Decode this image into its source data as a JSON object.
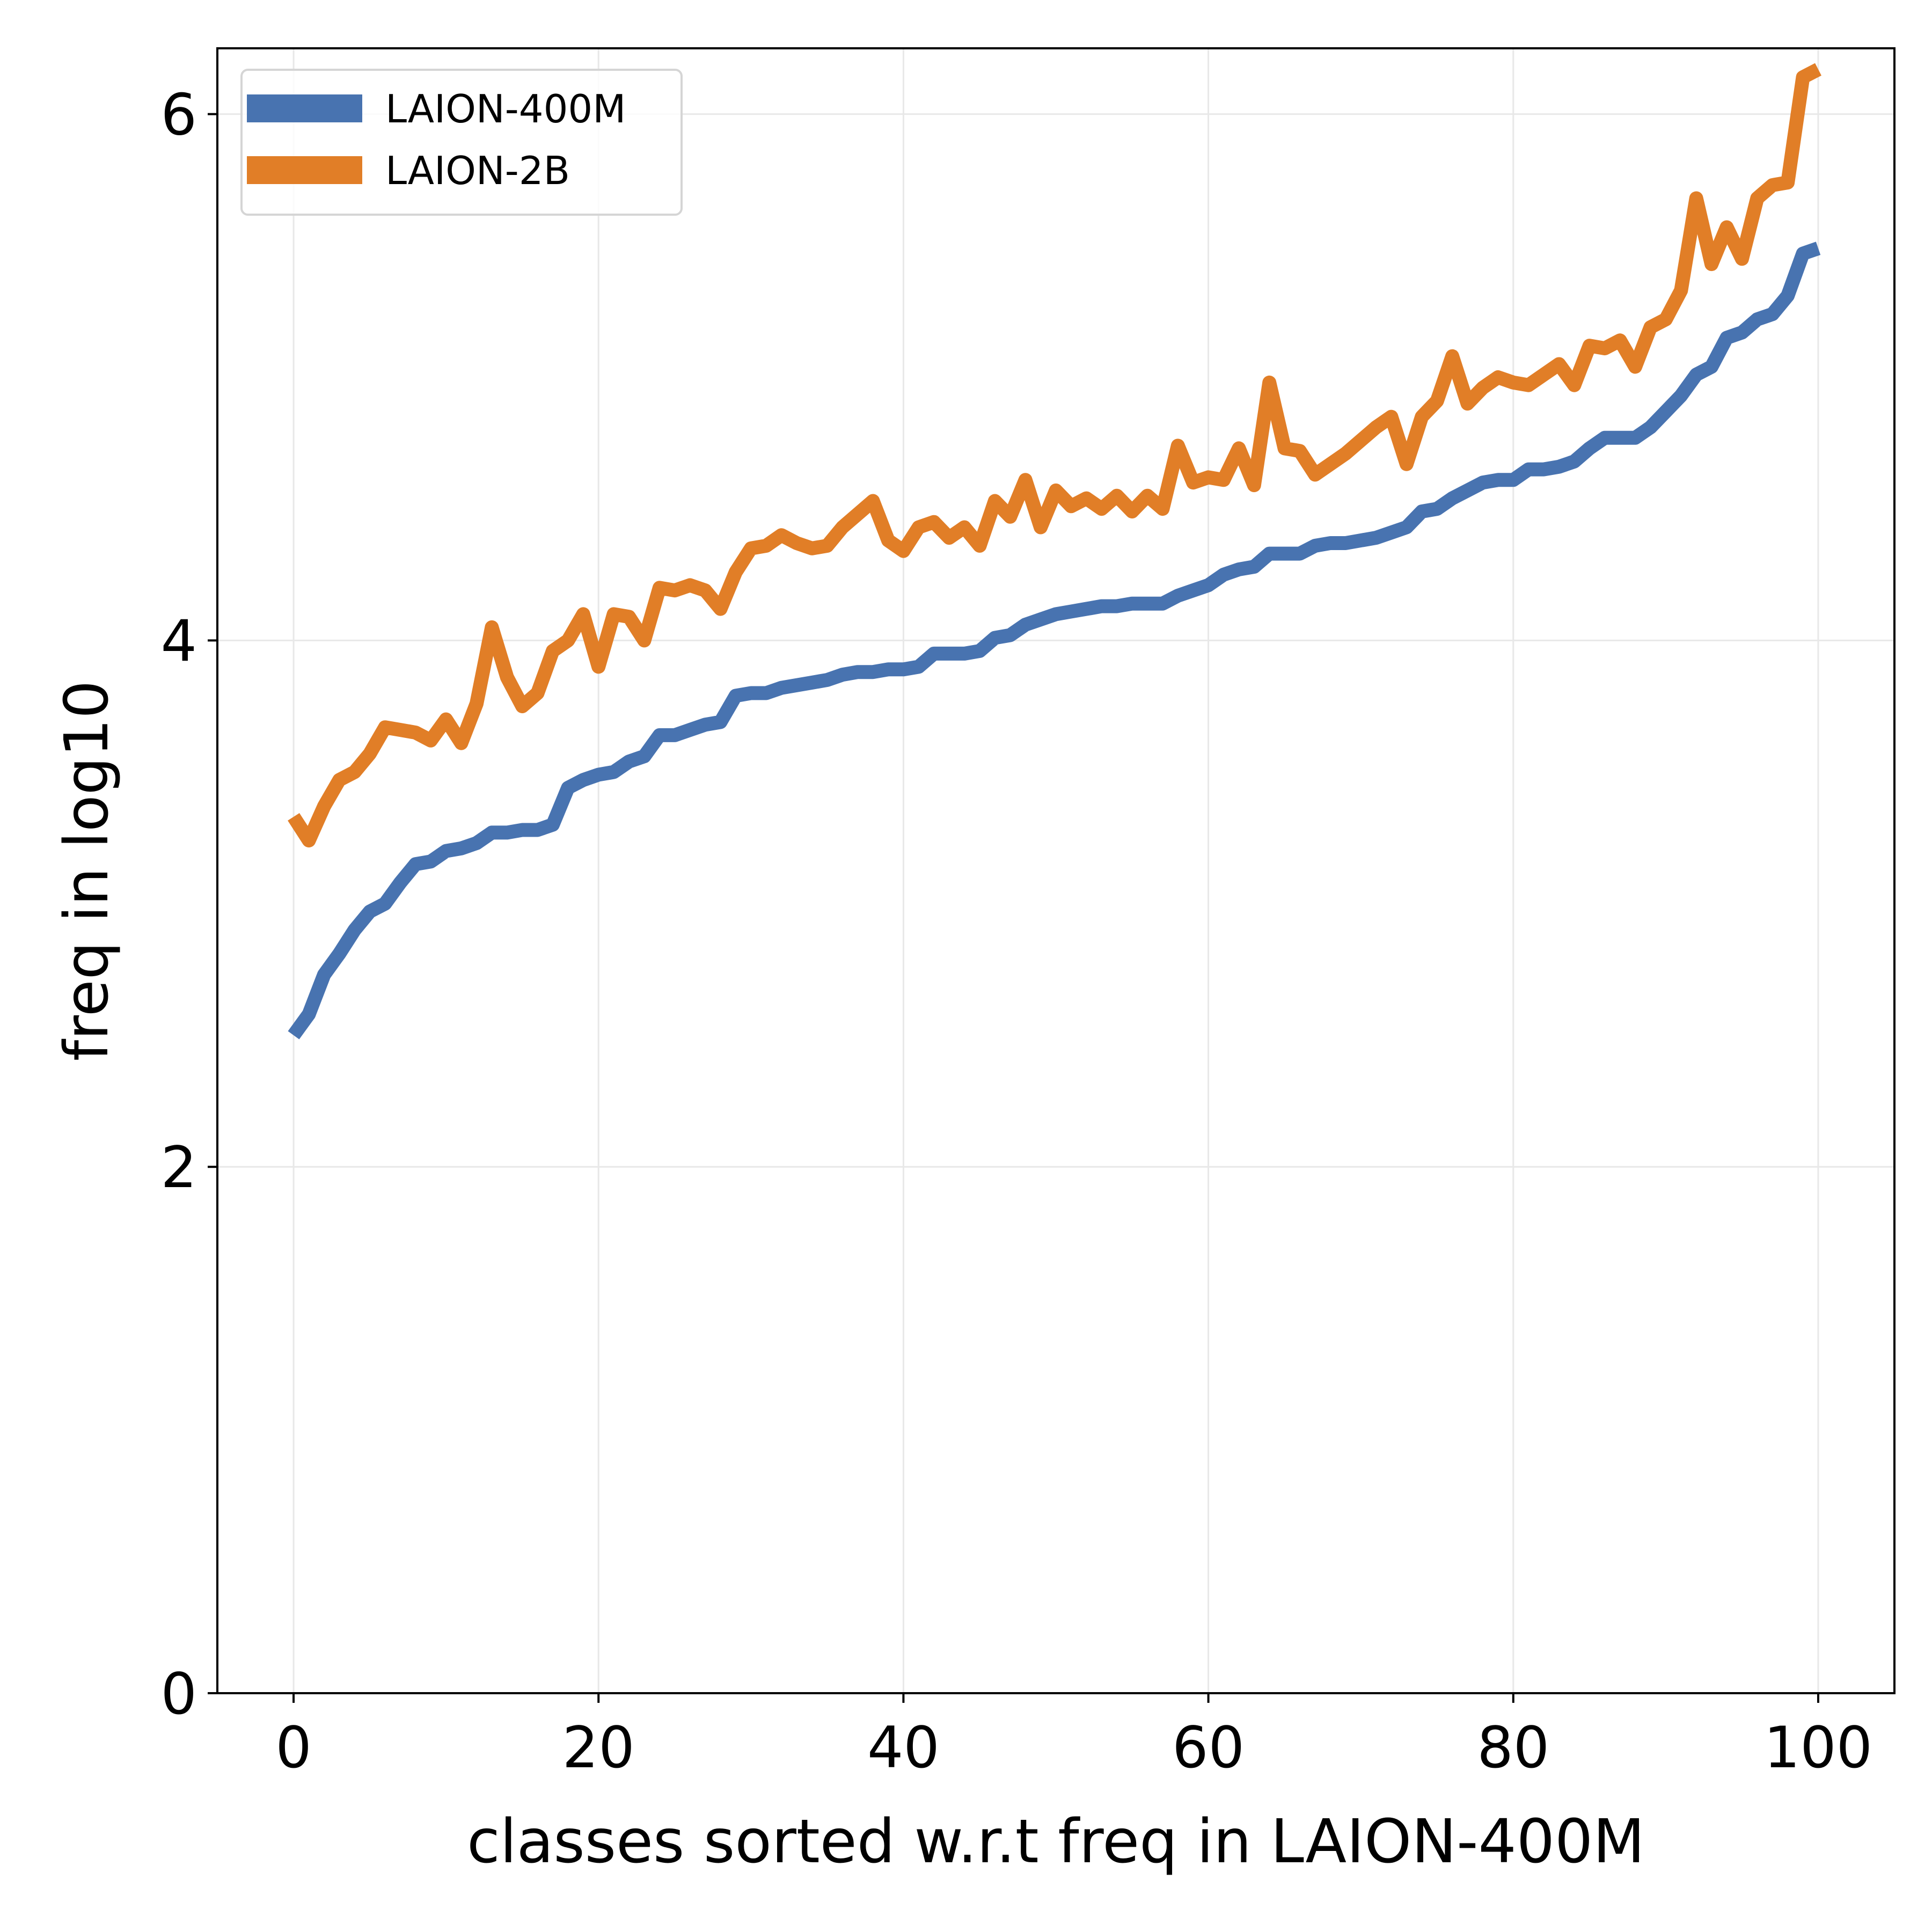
{
  "chart_data": {
    "type": "line",
    "xlabel": "classes sorted w.r.t freq in LAION-400M",
    "ylabel": "freq in log10",
    "xlim": [
      -5,
      105
    ],
    "ylim": [
      0,
      6.25
    ],
    "xticks": [
      0,
      20,
      40,
      60,
      80,
      100
    ],
    "yticks": [
      0,
      2,
      4,
      6
    ],
    "grid": true,
    "legend_position": "top-left",
    "series": [
      {
        "name": "LAION-400M",
        "color": "#4873b0",
        "values": [
          2.5,
          2.58,
          2.73,
          2.81,
          2.9,
          2.97,
          3.0,
          3.08,
          3.15,
          3.16,
          3.2,
          3.21,
          3.23,
          3.27,
          3.27,
          3.28,
          3.28,
          3.3,
          3.44,
          3.47,
          3.49,
          3.5,
          3.54,
          3.56,
          3.64,
          3.64,
          3.66,
          3.68,
          3.69,
          3.79,
          3.8,
          3.8,
          3.82,
          3.83,
          3.84,
          3.85,
          3.87,
          3.88,
          3.88,
          3.89,
          3.89,
          3.9,
          3.95,
          3.95,
          3.95,
          3.96,
          4.01,
          4.02,
          4.06,
          4.08,
          4.1,
          4.11,
          4.12,
          4.13,
          4.13,
          4.14,
          4.14,
          4.14,
          4.17,
          4.19,
          4.21,
          4.25,
          4.27,
          4.28,
          4.33,
          4.33,
          4.33,
          4.36,
          4.37,
          4.37,
          4.38,
          4.39,
          4.41,
          4.43,
          4.49,
          4.5,
          4.54,
          4.57,
          4.6,
          4.61,
          4.61,
          4.65,
          4.65,
          4.66,
          4.68,
          4.73,
          4.77,
          4.77,
          4.77,
          4.81,
          4.87,
          4.93,
          5.01,
          5.04,
          5.15,
          5.17,
          5.22,
          5.24,
          5.31,
          5.47,
          5.49
        ]
      },
      {
        "name": "LAION-2B",
        "color": "#e17e27",
        "values": [
          3.33,
          3.24,
          3.37,
          3.47,
          3.5,
          3.57,
          3.67,
          3.66,
          3.65,
          3.62,
          3.7,
          3.61,
          3.76,
          4.05,
          3.86,
          3.75,
          3.8,
          3.96,
          4.0,
          4.1,
          3.9,
          4.1,
          4.09,
          4.0,
          4.2,
          4.19,
          4.21,
          4.19,
          4.12,
          4.26,
          4.35,
          4.36,
          4.4,
          4.37,
          4.35,
          4.36,
          4.43,
          4.48,
          4.53,
          4.38,
          4.34,
          4.43,
          4.45,
          4.39,
          4.43,
          4.36,
          4.53,
          4.47,
          4.61,
          4.43,
          4.57,
          4.51,
          4.54,
          4.5,
          4.55,
          4.49,
          4.55,
          4.5,
          4.74,
          4.6,
          4.62,
          4.61,
          4.73,
          4.59,
          4.98,
          4.73,
          4.72,
          4.63,
          4.67,
          4.71,
          4.76,
          4.81,
          4.85,
          4.67,
          4.85,
          4.91,
          5.08,
          4.9,
          4.96,
          5.0,
          4.98,
          4.97,
          5.01,
          5.05,
          4.97,
          5.12,
          5.11,
          5.14,
          5.04,
          5.19,
          5.22,
          5.33,
          5.68,
          5.43,
          5.57,
          5.45,
          5.68,
          5.73,
          5.74,
          6.14,
          6.17
        ]
      }
    ]
  }
}
